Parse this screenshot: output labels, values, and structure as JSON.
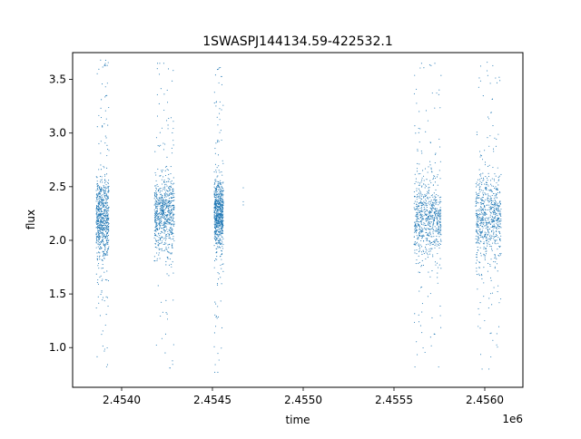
{
  "chart_data": {
    "type": "scatter",
    "title": "1SWASPJ144134.59-422532.1",
    "xlabel": "time",
    "ylabel": "flux",
    "x_offset_label": "1e6",
    "xlim": [
      2.45373,
      2.45621
    ],
    "ylim": [
      0.63,
      3.75
    ],
    "x_ticks": [
      2.454,
      2.4545,
      2.455,
      2.4555,
      2.456
    ],
    "x_tick_labels": [
      "2.4540",
      "2.4545",
      "2.4550",
      "2.4555",
      "2.4560"
    ],
    "y_ticks": [
      1.0,
      1.5,
      2.0,
      2.5,
      3.0,
      3.5
    ],
    "y_tick_labels": [
      "1.0",
      "1.5",
      "2.0",
      "2.5",
      "3.0",
      "3.5"
    ],
    "grid": false,
    "marker_color": "#1f77b4",
    "series": [
      {
        "segments": [
          {
            "x_start": 2.45386,
            "x_end": 2.45393,
            "median": 2.2,
            "spread": 0.22,
            "outlier_min": 0.8,
            "outlier_max": 3.68
          },
          {
            "x_start": 2.45418,
            "x_end": 2.45429,
            "median": 2.25,
            "spread": 0.2,
            "outlier_min": 0.81,
            "outlier_max": 3.65
          },
          {
            "x_start": 2.45451,
            "x_end": 2.45456,
            "median": 2.25,
            "spread": 0.18,
            "outlier_min": 0.77,
            "outlier_max": 3.67
          },
          {
            "x_start": 2.45561,
            "x_end": 2.45576,
            "median": 2.2,
            "spread": 0.22,
            "outlier_min": 0.82,
            "outlier_max": 3.65
          },
          {
            "x_start": 2.45595,
            "x_end": 2.45609,
            "median": 2.2,
            "spread": 0.22,
            "outlier_min": 0.8,
            "outlier_max": 3.66
          }
        ],
        "isolated_points": [
          {
            "x": 2.45467,
            "y": 2.49
          },
          {
            "x": 2.45467,
            "y": 2.36
          },
          {
            "x": 2.45467,
            "y": 2.33
          }
        ]
      }
    ]
  }
}
